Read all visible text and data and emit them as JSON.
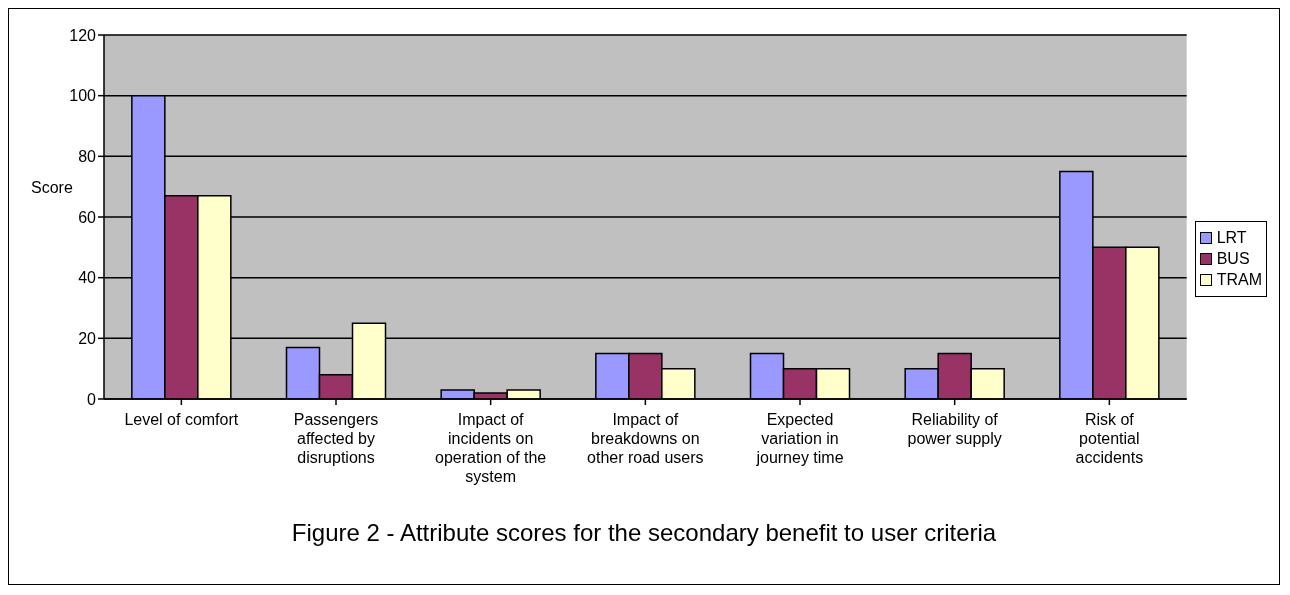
{
  "chart_data": {
    "type": "bar",
    "title": "Figure 2 - Attribute scores for the secondary benefit to user criteria",
    "ylabel": "Score",
    "categories": [
      "Level of comfort",
      "Passengers affected by disruptions",
      "Impact of incidents on operation of the system",
      "Impact of breakdowns on other road users",
      "Expected variation in journey time",
      "Reliability of power supply",
      "Risk of potential accidents"
    ],
    "series": [
      {
        "name": "LRT",
        "color": "#9999ff",
        "values": [
          100,
          17,
          3,
          15,
          15,
          10,
          75
        ]
      },
      {
        "name": "BUS",
        "color": "#993366",
        "values": [
          67,
          8,
          2,
          15,
          10,
          15,
          50
        ]
      },
      {
        "name": "TRAM",
        "color": "#ffffcc",
        "values": [
          67,
          25,
          3,
          10,
          10,
          10,
          50
        ]
      }
    ],
    "ylim": [
      0,
      120
    ],
    "yticks": [
      0,
      20,
      40,
      60,
      80,
      100,
      120
    ],
    "grid": "y",
    "legend": "right"
  }
}
